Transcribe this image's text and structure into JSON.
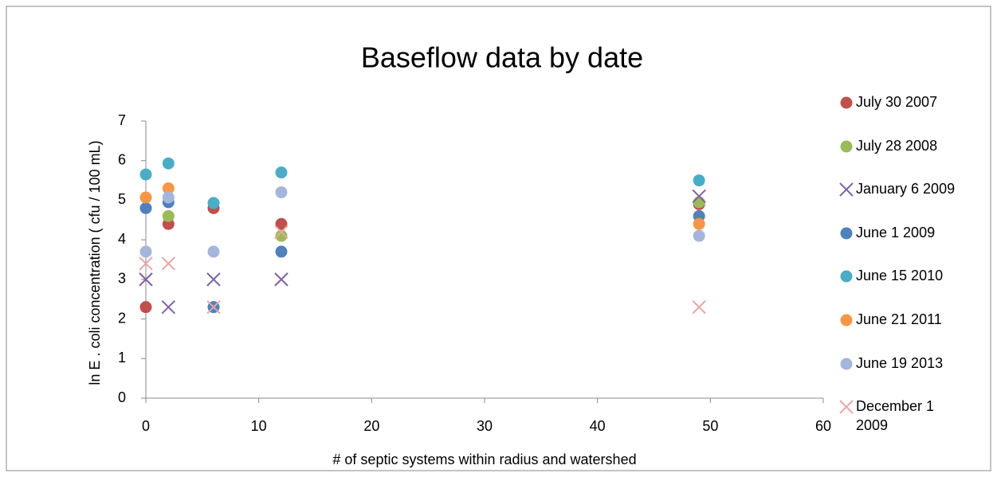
{
  "chart_data": {
    "type": "scatter",
    "title": "Baseflow data by date",
    "x_label": "# of septic systems within radius and watershed",
    "y_label": "ln E . coli concentration ( cfu / 100 mL)",
    "xlim": [
      0,
      60
    ],
    "xticks": [
      0,
      10,
      20,
      30,
      40,
      50,
      60
    ],
    "ylim": [
      0,
      7
    ],
    "yticks": [
      0,
      1,
      2,
      3,
      4,
      5,
      6,
      7
    ],
    "grid": false,
    "legend": "right",
    "series": [
      {
        "name": "July 30 2007",
        "color": "#c0504d",
        "marker": "circle",
        "x": [
          0,
          2,
          6,
          12,
          49
        ],
        "values": [
          2.3,
          4.4,
          4.8,
          4.4,
          4.9
        ]
      },
      {
        "name": "July 28 2008",
        "color": "#9bbb59",
        "marker": "circle",
        "x": [
          2,
          12,
          49
        ],
        "values": [
          4.6,
          4.1,
          4.95
        ]
      },
      {
        "name": "January 6 2009",
        "color": "#8064a2",
        "marker": "x",
        "x": [
          0,
          2,
          6,
          12,
          49
        ],
        "values": [
          3.0,
          2.3,
          3.0,
          3.0,
          5.1
        ]
      },
      {
        "name": "June 1 2009",
        "color": "#4f81bd",
        "marker": "circle",
        "x": [
          0,
          2,
          6,
          12,
          49
        ],
        "values": [
          4.8,
          4.95,
          2.3,
          3.7,
          4.6
        ]
      },
      {
        "name": "June 15 2010",
        "color": "#4bacc6",
        "marker": "circle",
        "x": [
          0,
          2,
          6,
          12,
          49
        ],
        "values": [
          5.65,
          5.93,
          4.93,
          5.7,
          5.5
        ]
      },
      {
        "name": "June 21 2011",
        "color": "#f79646",
        "marker": "circle",
        "x": [
          0,
          2,
          49
        ],
        "values": [
          5.07,
          5.3,
          4.4
        ]
      },
      {
        "name": "June 19 2013",
        "color": "#a5b6dc",
        "marker": "circle",
        "x": [
          0,
          2,
          6,
          12,
          49
        ],
        "values": [
          3.7,
          5.07,
          3.7,
          5.2,
          4.1
        ]
      },
      {
        "name": "December 1 2009",
        "color": "#e6a7a5",
        "marker": "x",
        "x": [
          0,
          2,
          6,
          12,
          49
        ],
        "values": [
          3.4,
          3.4,
          2.3,
          4.2,
          2.3
        ]
      }
    ]
  }
}
